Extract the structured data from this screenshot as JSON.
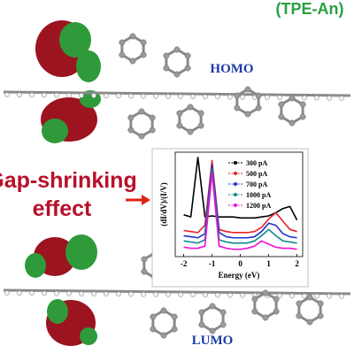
{
  "title": "(TPE-An)",
  "homo_label": "HOMO",
  "lumo_label": "LUMO",
  "effect_lines": [
    "Gap-shrinking",
    "effect"
  ],
  "chart_data": {
    "type": "line",
    "x_label": "Energy (eV)",
    "y_label": "(dI/dV)/(I/V)",
    "x": [
      -2,
      -1.75,
      -1.5,
      -1.25,
      -1,
      -0.75,
      -0.5,
      -0.25,
      0,
      0.25,
      0.5,
      0.75,
      1,
      1.25,
      1.5,
      1.75,
      2
    ],
    "xlim": [
      -2.3,
      2.2
    ],
    "xticks": [
      -2,
      -1,
      0,
      1,
      2
    ],
    "ylim": [
      0,
      10
    ],
    "series": [
      {
        "name": "300 pA",
        "color": "#000000",
        "values": [
          4.0,
          3.8,
          9.5,
          3.8,
          3.9,
          3.8,
          3.8,
          3.8,
          3.7,
          3.7,
          3.7,
          3.8,
          3.9,
          4.2,
          4.6,
          4.8,
          3.5
        ]
      },
      {
        "name": "500 pA",
        "color": "#e8202a",
        "values": [
          2.5,
          2.4,
          2.3,
          3.0,
          9.2,
          2.6,
          2.4,
          2.3,
          2.3,
          2.3,
          2.4,
          2.8,
          3.6,
          4.2,
          3.4,
          2.6,
          2.4
        ]
      },
      {
        "name": "700 pA",
        "color": "#2030d0",
        "values": [
          2.0,
          1.9,
          1.8,
          2.2,
          8.8,
          2.3,
          1.9,
          1.8,
          1.8,
          1.8,
          1.9,
          2.4,
          3.2,
          3.0,
          2.2,
          1.9,
          1.8
        ]
      },
      {
        "name": "1000 pA",
        "color": "#0a8a8a",
        "values": [
          1.5,
          1.4,
          1.3,
          1.6,
          8.4,
          1.6,
          1.4,
          1.3,
          1.3,
          1.3,
          1.5,
          2.0,
          2.6,
          2.0,
          1.5,
          1.4,
          1.3
        ]
      },
      {
        "name": "1200 pA",
        "color": "#ee10d8",
        "values": [
          0.9,
          0.8,
          0.8,
          1.0,
          8.0,
          1.0,
          0.8,
          0.7,
          0.7,
          0.8,
          1.0,
          1.5,
          1.2,
          0.9,
          0.8,
          0.8,
          0.7
        ]
      }
    ]
  }
}
